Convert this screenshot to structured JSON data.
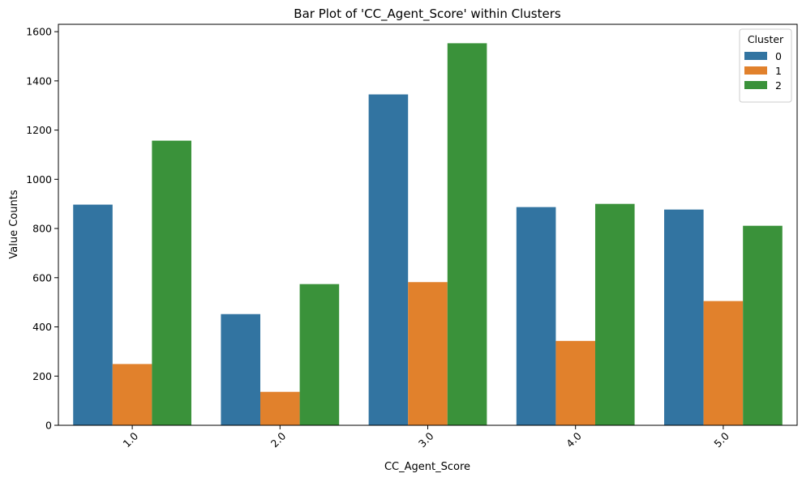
{
  "chart_data": {
    "type": "bar",
    "title": "Bar Plot of 'CC_Agent_Score' within Clusters",
    "xlabel": "CC_Agent_Score",
    "ylabel": "Value Counts",
    "categories": [
      "1.0",
      "2.0",
      "3.0",
      "4.0",
      "5.0"
    ],
    "series": [
      {
        "name": "0",
        "color": "#3274a1",
        "values": [
          897,
          452,
          1345,
          887,
          877
        ]
      },
      {
        "name": "1",
        "color": "#e1812c",
        "values": [
          249,
          136,
          582,
          343,
          505
        ]
      },
      {
        "name": "2",
        "color": "#3a923a",
        "values": [
          1157,
          574,
          1553,
          900,
          811
        ]
      }
    ],
    "ylim": [
      0,
      1630
    ],
    "yticks": [
      0,
      200,
      400,
      600,
      800,
      1000,
      1200,
      1400,
      1600
    ],
    "xtick_rotation": 45,
    "grid": false,
    "legend": {
      "title": "Cluster",
      "placement": "top-right"
    }
  }
}
